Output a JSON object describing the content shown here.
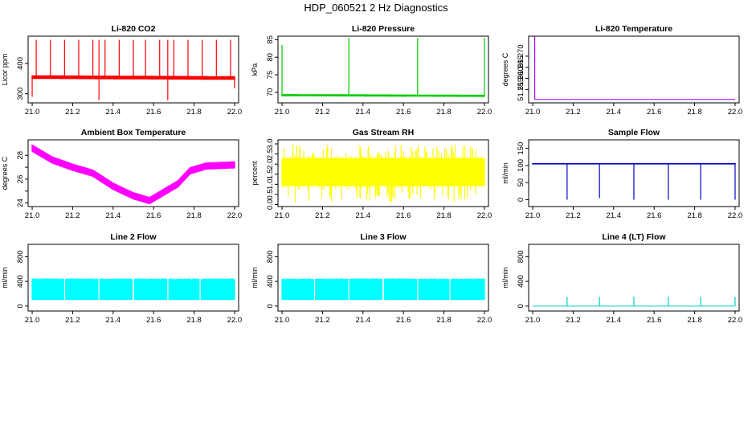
{
  "figure_title": "HDP_060521  2 Hz Diagnostics",
  "chart_data": [
    {
      "type": "line",
      "title": "Li-820 CO2",
      "ylabel": "Licor ppm",
      "color": "#ff0000",
      "xlim": [
        20.98,
        22.02
      ],
      "ylim": [
        270,
        490
      ],
      "xticks": [
        21.0,
        21.2,
        21.4,
        21.6,
        21.8,
        22.0
      ],
      "xtick_labels": [
        "21.0",
        "21.2",
        "21.4",
        "21.6",
        "21.8",
        "22.0"
      ],
      "yticks": [
        300,
        400
      ],
      "ytick_labels": [
        "300",
        "400"
      ],
      "baseline": [
        [
          21.0,
          355
        ],
        [
          22.0,
          352
        ]
      ],
      "noise": 6,
      "spikes_up": [
        [
          21.02,
          478
        ],
        [
          21.09,
          478
        ],
        [
          21.16,
          478
        ],
        [
          21.23,
          478
        ],
        [
          21.3,
          478
        ],
        [
          21.33,
          478
        ],
        [
          21.36,
          478
        ],
        [
          21.43,
          478
        ],
        [
          21.5,
          478
        ],
        [
          21.56,
          478
        ],
        [
          21.63,
          478
        ],
        [
          21.67,
          478
        ],
        [
          21.7,
          478
        ],
        [
          21.77,
          478
        ],
        [
          21.84,
          478
        ],
        [
          21.91,
          478
        ],
        [
          21.98,
          478
        ]
      ],
      "spikes_down": [
        [
          21.0,
          290
        ],
        [
          21.33,
          280
        ],
        [
          21.67,
          278
        ],
        [
          22.0,
          318
        ]
      ]
    },
    {
      "type": "line",
      "title": "Li-820 Pressure",
      "ylabel": "kPa",
      "color": "#00cc00",
      "xlim": [
        20.98,
        22.02
      ],
      "ylim": [
        67,
        86
      ],
      "xticks": [
        21.0,
        21.2,
        21.4,
        21.6,
        21.8,
        22.0
      ],
      "xtick_labels": [
        "21.0",
        "21.2",
        "21.4",
        "21.6",
        "21.8",
        "22.0"
      ],
      "yticks": [
        70,
        75,
        80,
        85
      ],
      "ytick_labels": [
        "70",
        "75",
        "80",
        "85"
      ],
      "baseline": [
        [
          21.0,
          69.2
        ],
        [
          22.0,
          69.0
        ]
      ],
      "noise": 0.3,
      "spikes_up": [
        [
          21.0,
          83.5
        ],
        [
          21.33,
          85.5
        ],
        [
          21.67,
          85.5
        ],
        [
          22.0,
          85.5
        ]
      ],
      "spikes_down": []
    },
    {
      "type": "line",
      "title": "Li-820 Temperature",
      "ylabel": "degrees C",
      "color": "#aa00ff",
      "xlim": [
        20.98,
        22.02
      ],
      "ylim": [
        51.249,
        51.279
      ],
      "xticks": [
        21.0,
        21.2,
        21.4,
        21.6,
        21.8,
        22.0
      ],
      "xtick_labels": [
        "21.0",
        "21.2",
        "21.4",
        "21.6",
        "21.8",
        "22.0"
      ],
      "yticks": [
        51.255,
        51.26,
        51.265,
        51.27
      ],
      "ytick_labels": [
        "51.255",
        "51.260",
        "51.265",
        "51.270"
      ],
      "baseline": [
        [
          21.01,
          51.2505
        ],
        [
          22.0,
          51.2505
        ]
      ],
      "noise": 0,
      "spikes_up": [
        [
          21.01,
          51.279
        ]
      ],
      "spikes_down": []
    },
    {
      "type": "line",
      "title": "Ambient Box Temperature",
      "ylabel": "degrees C",
      "color": "#ff00ff",
      "xlim": [
        20.98,
        22.02
      ],
      "ylim": [
        23.7,
        29.3
      ],
      "xticks": [
        21.0,
        21.2,
        21.4,
        21.6,
        21.8,
        22.0
      ],
      "xtick_labels": [
        "21.0",
        "21.2",
        "21.4",
        "21.6",
        "21.8",
        "22.0"
      ],
      "yticks": [
        24,
        25,
        26,
        27,
        28
      ],
      "ytick_labels": [
        "24",
        "26",
        "28"
      ],
      "ytick_label_values": [
        24,
        26,
        28
      ],
      "baseline": [
        [
          21.0,
          28.6
        ],
        [
          21.05,
          28.1
        ],
        [
          21.1,
          27.6
        ],
        [
          21.2,
          27.0
        ],
        [
          21.3,
          26.5
        ],
        [
          21.4,
          25.4
        ],
        [
          21.5,
          24.6
        ],
        [
          21.58,
          24.2
        ],
        [
          21.65,
          24.9
        ],
        [
          21.72,
          25.6
        ],
        [
          21.78,
          26.7
        ],
        [
          21.86,
          27.1
        ],
        [
          22.0,
          27.2
        ]
      ],
      "noise": 0.3,
      "spikes_up": [],
      "spikes_down": []
    },
    {
      "type": "line",
      "title": "Gas Stream RH",
      "ylabel": "percent",
      "color": "#ffff00",
      "xlim": [
        20.98,
        22.02
      ],
      "ylim": [
        -0.1,
        3.2
      ],
      "xticks": [
        21.0,
        21.2,
        21.4,
        21.6,
        21.8,
        22.0
      ],
      "xtick_labels": [
        "21.0",
        "21.2",
        "21.4",
        "21.6",
        "21.8",
        "22.0"
      ],
      "yticks": [
        0,
        0.5,
        1.0,
        1.5,
        2.0,
        2.5,
        3.0
      ],
      "ytick_labels": [
        "0.0",
        "0.5",
        "1.0",
        "1.5",
        "2.0",
        "2.5",
        "3.0"
      ],
      "band": {
        "low": 0.9,
        "high": 2.3,
        "ext_low": 0.1,
        "ext_high": 3.0
      }
    },
    {
      "type": "line",
      "title": "Sample Flow",
      "ylabel": "ml/min",
      "color": "#0000cc",
      "xlim": [
        20.98,
        22.02
      ],
      "ylim": [
        -20,
        175
      ],
      "xticks": [
        21.0,
        21.2,
        21.4,
        21.6,
        21.8,
        22.0
      ],
      "xtick_labels": [
        "21.0",
        "21.2",
        "21.4",
        "21.6",
        "21.8",
        "22.0"
      ],
      "yticks": [
        0,
        50,
        100,
        150
      ],
      "ytick_labels": [
        "0",
        "50",
        "100",
        "150"
      ],
      "baseline": [
        [
          21.0,
          105
        ],
        [
          22.0,
          105
        ]
      ],
      "noise": 2,
      "spikes_up": [],
      "spikes_down": [
        [
          21.17,
          0
        ],
        [
          21.33,
          5
        ],
        [
          21.5,
          0
        ],
        [
          21.67,
          0
        ],
        [
          21.83,
          0
        ],
        [
          22.0,
          0
        ]
      ]
    },
    {
      "type": "area",
      "title": "Line 2 Flow",
      "ylabel": "ml/min",
      "color": "#00ffff",
      "xlim": [
        20.98,
        22.02
      ],
      "ylim": [
        -80,
        1000
      ],
      "xticks": [
        21.0,
        21.2,
        21.4,
        21.6,
        21.8,
        22.0
      ],
      "xtick_labels": [
        "21.0",
        "21.2",
        "21.4",
        "21.6",
        "21.8",
        "22.0"
      ],
      "yticks": [
        0,
        400,
        800
      ],
      "ytick_labels": [
        "0",
        "400",
        "800"
      ],
      "band": {
        "low": 100,
        "high": 440
      },
      "gaps": [
        21.16,
        21.33,
        21.5,
        21.67,
        21.83
      ]
    },
    {
      "type": "area",
      "title": "Line 3 Flow",
      "ylabel": "ml/min",
      "color": "#00ffff",
      "xlim": [
        20.98,
        22.02
      ],
      "ylim": [
        -80,
        1000
      ],
      "xticks": [
        21.0,
        21.2,
        21.4,
        21.6,
        21.8,
        22.0
      ],
      "xtick_labels": [
        "21.0",
        "21.2",
        "21.4",
        "21.6",
        "21.8",
        "22.0"
      ],
      "yticks": [
        0,
        400,
        800
      ],
      "ytick_labels": [
        "0",
        "400",
        "800"
      ],
      "band": {
        "low": 100,
        "high": 440
      },
      "gaps": [
        21.16,
        21.33,
        21.5,
        21.67,
        21.83
      ]
    },
    {
      "type": "line",
      "title": "Line 4 (LT) Flow",
      "ylabel": "ml/min",
      "color": "#00cccc",
      "xlim": [
        20.98,
        22.02
      ],
      "ylim": [
        -80,
        1000
      ],
      "xticks": [
        21.0,
        21.2,
        21.4,
        21.6,
        21.8,
        22.0
      ],
      "xtick_labels": [
        "21.0",
        "21.2",
        "21.4",
        "21.6",
        "21.8",
        "22.0"
      ],
      "yticks": [
        0,
        400,
        800
      ],
      "ytick_labels": [
        "0",
        "400",
        "800"
      ],
      "baseline": [
        [
          21.0,
          0
        ],
        [
          22.0,
          0
        ]
      ],
      "noise": 0,
      "spikes_up": [
        [
          21.17,
          150
        ],
        [
          21.33,
          150
        ],
        [
          21.5,
          150
        ],
        [
          21.67,
          150
        ],
        [
          21.83,
          150
        ],
        [
          22.0,
          150
        ]
      ],
      "spikes_down": []
    }
  ]
}
